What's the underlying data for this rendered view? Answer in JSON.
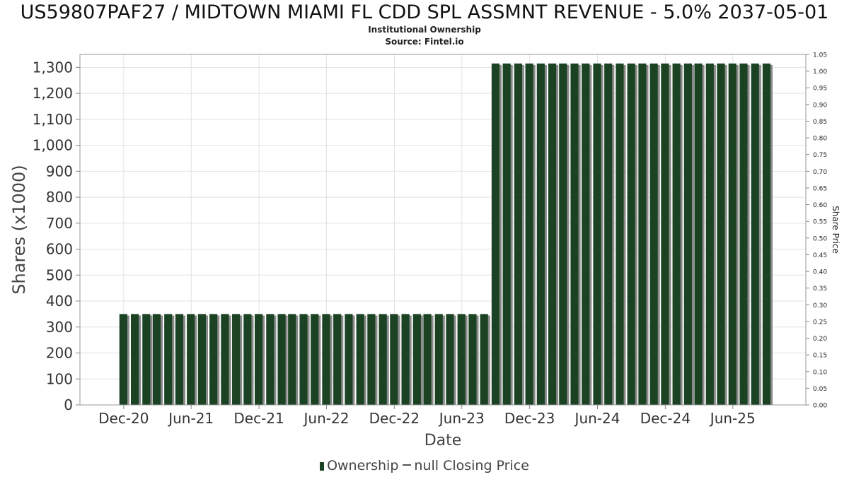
{
  "chart_data": {
    "type": "bar",
    "title": "US59807PAF27 / MIDTOWN MIAMI FL CDD SPL ASSMNT REVENUE - 5.0% 2037-05-01",
    "subtitle": "Institutional Ownership",
    "source": "Source: Fintel.io",
    "xlabel": "Date",
    "ylabel": "Shares (x1000)",
    "y2label": "Share Price",
    "ylim": [
      0,
      1350
    ],
    "y_ticks": [
      "0",
      "100",
      "200",
      "300",
      "400",
      "500",
      "600",
      "700",
      "800",
      "900",
      "1,000",
      "1,100",
      "1,200",
      "1,300"
    ],
    "y2lim": [
      0,
      1.05
    ],
    "y2_ticks": [
      "0.00",
      "0.05",
      "0.10",
      "0.15",
      "0.20",
      "0.25",
      "0.30",
      "0.35",
      "0.40",
      "0.45",
      "0.50",
      "0.55",
      "0.60",
      "0.65",
      "0.70",
      "0.75",
      "0.80",
      "0.85",
      "0.90",
      "0.95",
      "1.00",
      "1.05"
    ],
    "x_ticks": [
      "Dec-20",
      "Jun-21",
      "Dec-21",
      "Jun-22",
      "Dec-22",
      "Jun-23",
      "Dec-23",
      "Jun-24",
      "Dec-24",
      "Jun-25"
    ],
    "x_range": [
      "2020-08-05",
      "2025-12-15"
    ],
    "grid": true,
    "legend_position": "bottom",
    "colors": {
      "bar": "#1a4223",
      "bar_shadow": "#8a8a8a",
      "grid": "#e2e2e2",
      "line": "#555555"
    },
    "series": [
      {
        "name": "Ownership",
        "x": [
          "2020-11-30",
          "2020-12-31",
          "2021-01-31",
          "2021-02-28",
          "2021-03-31",
          "2021-04-30",
          "2021-05-31",
          "2021-06-30",
          "2021-07-31",
          "2021-08-31",
          "2021-09-30",
          "2021-10-31",
          "2021-11-30",
          "2021-12-31",
          "2022-01-31",
          "2022-02-28",
          "2022-03-31",
          "2022-04-30",
          "2022-05-31",
          "2022-06-30",
          "2022-07-31",
          "2022-08-31",
          "2022-09-30",
          "2022-10-31",
          "2022-11-30",
          "2022-12-31",
          "2023-01-31",
          "2023-02-28",
          "2023-03-31",
          "2023-04-30",
          "2023-05-31",
          "2023-06-30",
          "2023-07-31",
          "2023-08-31",
          "2023-09-30",
          "2023-10-31",
          "2023-11-30",
          "2023-12-31",
          "2024-01-31",
          "2024-02-29",
          "2024-03-31",
          "2024-04-30",
          "2024-05-31",
          "2024-06-30",
          "2024-07-31",
          "2024-08-31",
          "2024-09-30",
          "2024-10-31",
          "2024-11-30",
          "2024-12-31",
          "2025-01-31",
          "2025-02-28",
          "2025-03-31",
          "2025-04-30",
          "2025-05-31",
          "2025-06-30",
          "2025-07-31",
          "2025-08-31"
        ],
        "values": [
          350,
          350,
          350,
          350,
          350,
          350,
          350,
          350,
          350,
          350,
          350,
          350,
          350,
          350,
          350,
          350,
          350,
          350,
          350,
          350,
          350,
          350,
          350,
          350,
          350,
          350,
          350,
          350,
          350,
          350,
          350,
          350,
          350,
          1315,
          1315,
          1315,
          1315,
          1315,
          1315,
          1315,
          1315,
          1315,
          1315,
          1315,
          1315,
          1315,
          1315,
          1315,
          1315,
          1315,
          1315,
          1315,
          1315,
          1315,
          1315,
          1315,
          1315,
          1315
        ]
      },
      {
        "name": "null Closing Price",
        "values": []
      }
    ]
  }
}
